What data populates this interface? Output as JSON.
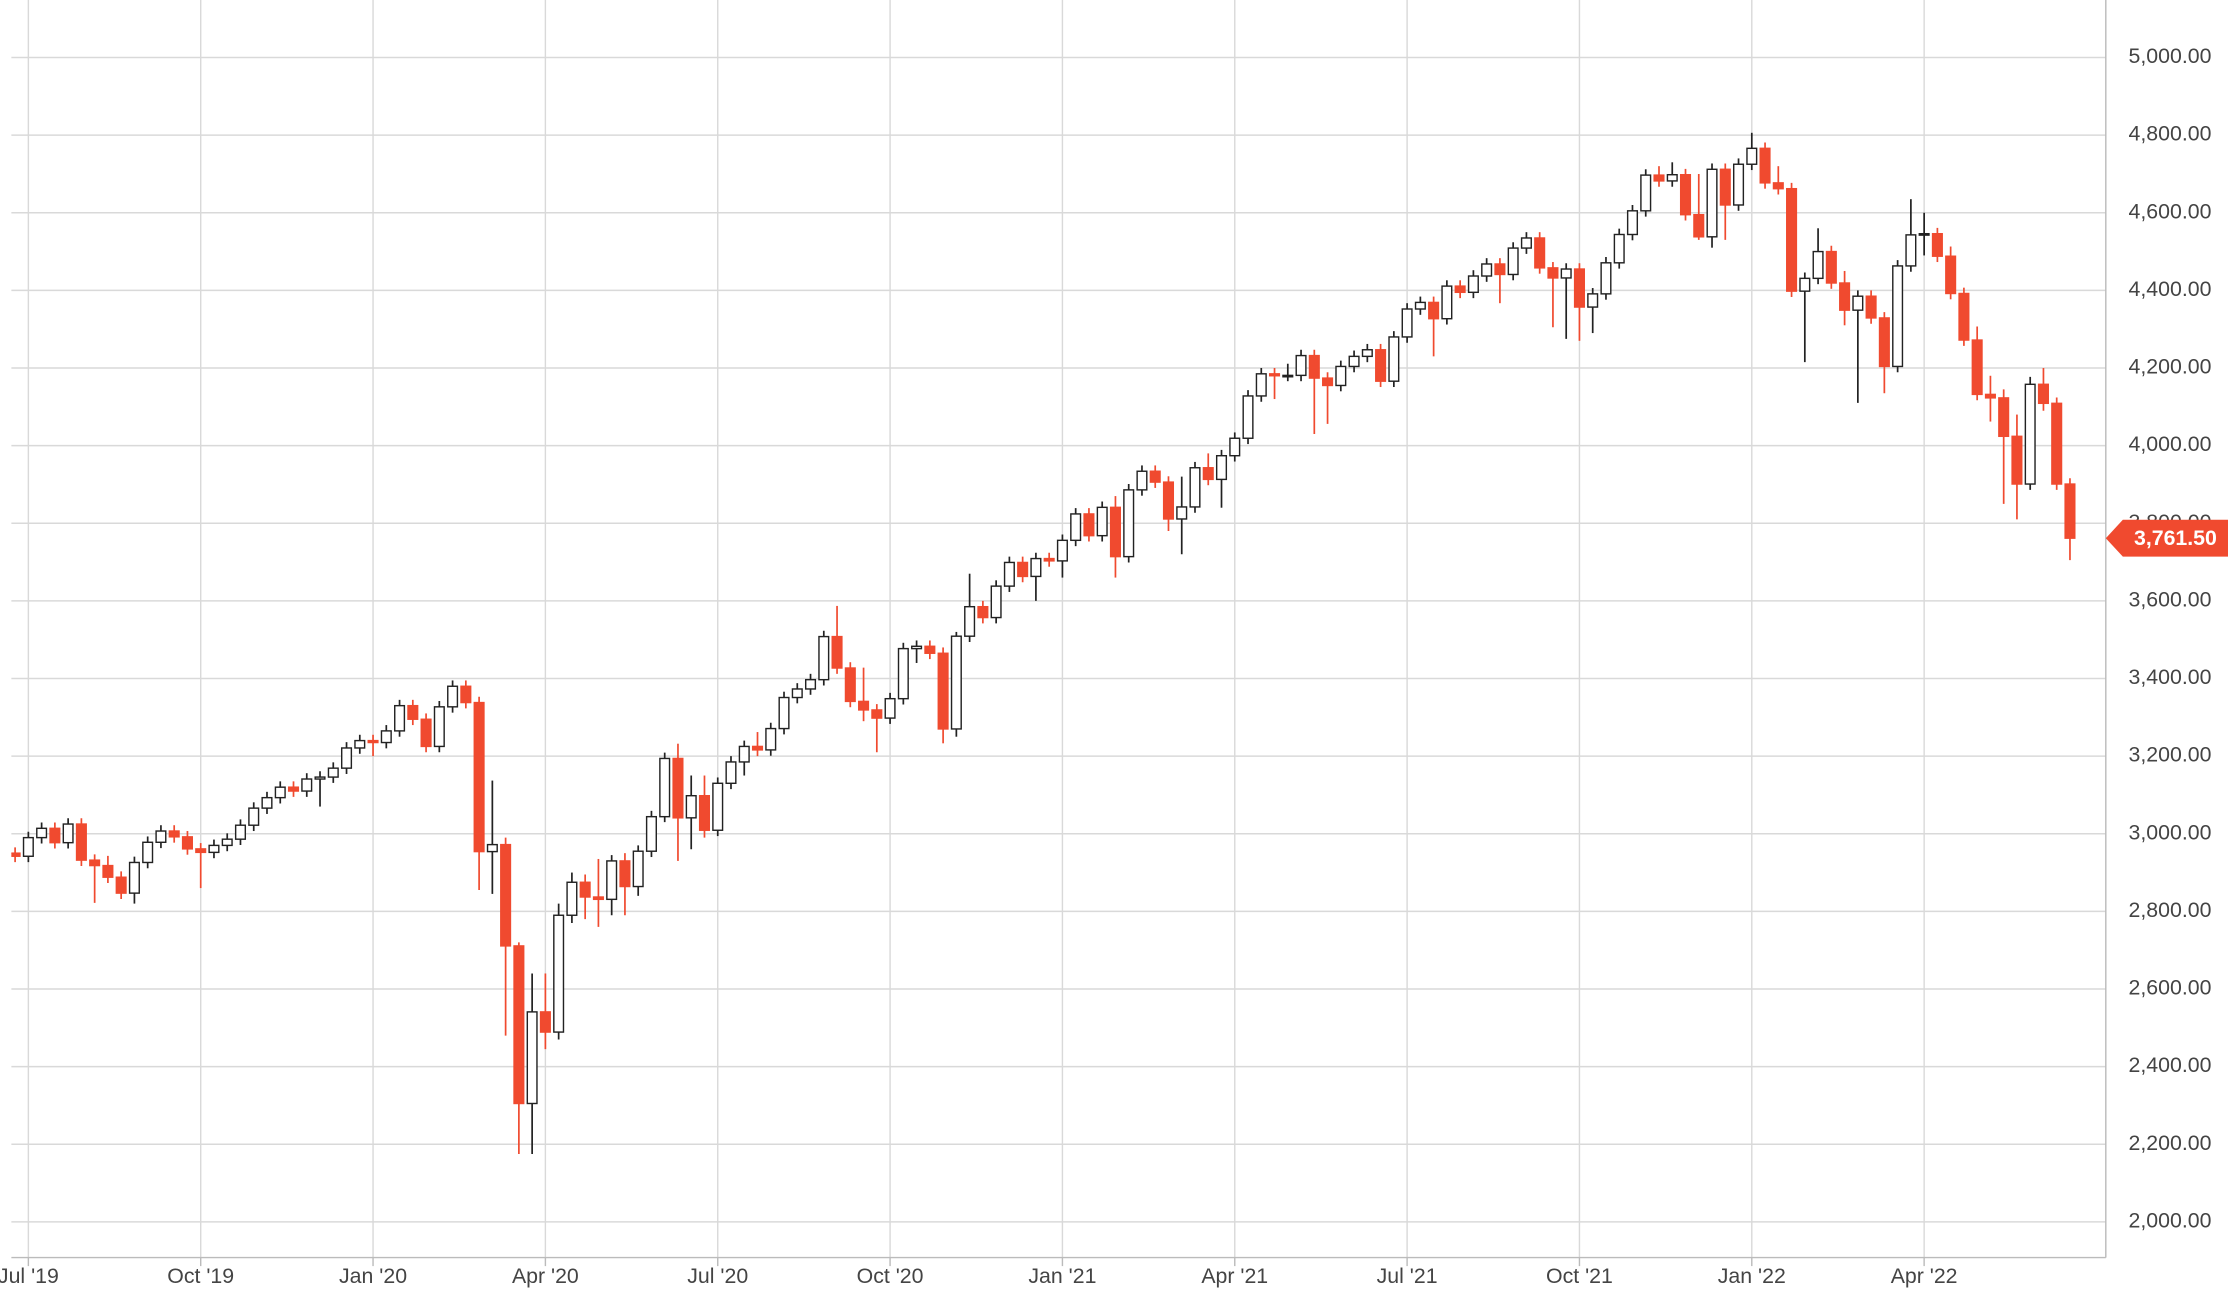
{
  "chart_data": {
    "type": "candlestick",
    "categories": [
      null,
      null,
      "Jul '19",
      null,
      null,
      null,
      null,
      null,
      null,
      null,
      null,
      null,
      null,
      null,
      null,
      "Oct '19",
      null,
      null,
      null,
      null,
      null,
      null,
      null,
      null,
      null,
      null,
      null,
      null,
      "Jan '20",
      null,
      null,
      null,
      null,
      null,
      null,
      null,
      null,
      null,
      null,
      null,
      null,
      "Apr '20",
      null,
      null,
      null,
      null,
      null,
      null,
      null,
      null,
      null,
      null,
      null,
      null,
      "Jul '20",
      null,
      null,
      null,
      null,
      null,
      null,
      null,
      null,
      null,
      null,
      null,
      null,
      "Oct '20",
      null,
      null,
      null,
      null,
      null,
      null,
      null,
      null,
      null,
      null,
      null,
      null,
      "Jan '21",
      null,
      null,
      null,
      null,
      null,
      null,
      null,
      null,
      null,
      null,
      null,
      null,
      "Apr '21",
      null,
      null,
      null,
      null,
      null,
      null,
      null,
      null,
      null,
      null,
      null,
      null,
      "Jul '21",
      null,
      null,
      null,
      null,
      null,
      null,
      null,
      null,
      null,
      null,
      null,
      null,
      "Oct '21",
      null,
      null,
      null,
      null,
      null,
      null,
      null,
      null,
      null,
      null,
      null,
      null,
      "Jan '22",
      null,
      null,
      null,
      null,
      null,
      null,
      null,
      null,
      null,
      null,
      null,
      null,
      "Apr '22",
      null,
      null,
      null,
      null,
      null,
      null,
      null,
      null,
      null,
      null,
      null
    ],
    "open": [
      2945,
      2950,
      2942,
      2990,
      3014,
      2977,
      3025,
      2932,
      2918,
      2888,
      2847,
      2926,
      2978,
      3007,
      2992,
      2961,
      2952,
      2970,
      2986,
      3022,
      3066,
      3093,
      3120,
      3110,
      3141,
      3146,
      3169,
      3221,
      3240,
      3235,
      3265,
      3330,
      3295,
      3225,
      3327,
      3380,
      3338,
      2954,
      2972,
      2711,
      2305,
      2541,
      2489,
      2790,
      2875,
      2837,
      2831,
      2930,
      2864,
      2955,
      3044,
      3194,
      3041,
      3098,
      3009,
      3130,
      3185,
      3225,
      3216,
      3271,
      3351,
      3373,
      3397,
      3508,
      3427,
      3341,
      3319,
      3298,
      3348,
      3477,
      3483,
      3465,
      3270,
      3509,
      3585,
      3557,
      3638,
      3699,
      3663,
      3709,
      3703,
      3756,
      3824,
      3768,
      3841,
      3714,
      3886,
      3934,
      3906,
      3811,
      3842,
      3943,
      3913,
      3974,
      4019,
      4128,
      4185,
      4180,
      4181,
      4232,
      4174,
      4155,
      4204,
      4230,
      4247,
      4166,
      4280,
      4352,
      4369,
      4327,
      4411,
      4395,
      4437,
      4468,
      4441,
      4509,
      4535,
      4458,
      4432,
      4455,
      4357,
      4391,
      4471,
      4544,
      4605,
      4697,
      4682,
      4698,
      4595,
      4538,
      4712,
      4620,
      4725,
      4766,
      4677,
      4662,
      4398,
      4431,
      4500,
      4419,
      4349,
      4385,
      4329,
      4204,
      4463,
      4543,
      4546,
      4488,
      4392,
      4272,
      4132,
      4123,
      4024,
      3901,
      4158,
      4109,
      3901
    ],
    "high": [
      2965,
      2965,
      3005,
      3029,
      3029,
      3040,
      3040,
      2947,
      2943,
      2903,
      2941,
      2993,
      3022,
      3022,
      3007,
      2976,
      2985,
      3001,
      3037,
      3081,
      3108,
      3135,
      3135,
      3156,
      3161,
      3184,
      3236,
      3255,
      3255,
      3280,
      3345,
      3345,
      3310,
      3342,
      3395,
      3395,
      3353,
      3137,
      2990,
      2720,
      2640,
      2640,
      2820,
      2900,
      2895,
      2935,
      2945,
      2950,
      2970,
      3059,
      3209,
      3232,
      3150,
      3150,
      3145,
      3200,
      3240,
      3262,
      3286,
      3366,
      3388,
      3412,
      3523,
      3587,
      3442,
      3428,
      3334,
      3363,
      3492,
      3498,
      3498,
      3480,
      3520,
      3670,
      3600,
      3653,
      3714,
      3714,
      3724,
      3724,
      3771,
      3839,
      3839,
      3856,
      3870,
      3901,
      3949,
      3949,
      3921,
      3920,
      3958,
      3980,
      3989,
      4034,
      4143,
      4200,
      4200,
      4211,
      4247,
      4247,
      4189,
      4219,
      4245,
      4262,
      4262,
      4295,
      4367,
      4384,
      4384,
      4426,
      4426,
      4452,
      4483,
      4483,
      4524,
      4550,
      4550,
      4473,
      4470,
      4470,
      4406,
      4486,
      4559,
      4620,
      4712,
      4720,
      4730,
      4713,
      4700,
      4727,
      4727,
      4740,
      4806,
      4781,
      4720,
      4677,
      4446,
      4560,
      4515,
      4450,
      4400,
      4400,
      4344,
      4478,
      4635,
      4600,
      4561,
      4513,
      4407,
      4307,
      4180,
      4145,
      4080,
      4177,
      4200,
      4124,
      3916
    ],
    "low": [
      2930,
      2927,
      2927,
      2975,
      2962,
      2962,
      2917,
      2822,
      2873,
      2832,
      2820,
      2911,
      2963,
      2977,
      2946,
      2860,
      2937,
      2955,
      2971,
      3007,
      3051,
      3078,
      3095,
      3095,
      3070,
      3131,
      3154,
      3206,
      3200,
      3220,
      3250,
      3280,
      3210,
      3210,
      3312,
      3323,
      2855,
      2845,
      2480,
      2175,
      2175,
      2445,
      2470,
      2770,
      2780,
      2760,
      2790,
      2790,
      2840,
      2940,
      3030,
      2930,
      2960,
      2990,
      2994,
      3115,
      3150,
      3200,
      3201,
      3256,
      3336,
      3358,
      3382,
      3412,
      3326,
      3290,
      3210,
      3283,
      3333,
      3440,
      3450,
      3233,
      3250,
      3494,
      3542,
      3542,
      3623,
      3648,
      3600,
      3688,
      3660,
      3741,
      3753,
      3753,
      3660,
      3699,
      3871,
      3891,
      3780,
      3720,
      3827,
      3898,
      3840,
      3959,
      4004,
      4113,
      4120,
      4166,
      4166,
      4030,
      4056,
      4140,
      4189,
      4215,
      4151,
      4151,
      4265,
      4337,
      4230,
      4312,
      4380,
      4380,
      4422,
      4367,
      4426,
      4494,
      4443,
      4305,
      4275,
      4270,
      4290,
      4376,
      4456,
      4529,
      4590,
      4667,
      4667,
      4580,
      4530,
      4510,
      4530,
      4605,
      4710,
      4662,
      4647,
      4383,
      4215,
      4416,
      4404,
      4310,
      4110,
      4314,
      4135,
      4189,
      4448,
      4490,
      4473,
      4377,
      4257,
      4117,
      4062,
      3850,
      3810,
      3886,
      4090,
      3886,
      3705
    ],
    "close": [
      2950,
      2942,
      2990,
      3014,
      2977,
      3025,
      2932,
      2918,
      2888,
      2847,
      2926,
      2978,
      3007,
      2992,
      2961,
      2952,
      2970,
      2986,
      3022,
      3066,
      3093,
      3120,
      3110,
      3141,
      3146,
      3169,
      3221,
      3240,
      3235,
      3265,
      3330,
      3295,
      3225,
      3327,
      3380,
      3338,
      2954,
      2972,
      2711,
      2305,
      2541,
      2489,
      2790,
      2875,
      2837,
      2831,
      2930,
      2864,
      2955,
      3044,
      3194,
      3041,
      3098,
      3009,
      3130,
      3185,
      3225,
      3216,
      3271,
      3351,
      3373,
      3397,
      3508,
      3427,
      3341,
      3319,
      3298,
      3348,
      3477,
      3483,
      3465,
      3270,
      3509,
      3585,
      3557,
      3638,
      3699,
      3663,
      3709,
      3703,
      3756,
      3824,
      3768,
      3841,
      3714,
      3886,
      3934,
      3906,
      3811,
      3842,
      3943,
      3913,
      3974,
      4019,
      4128,
      4185,
      4180,
      4181,
      4232,
      4174,
      4155,
      4204,
      4230,
      4247,
      4166,
      4280,
      4352,
      4369,
      4327,
      4411,
      4395,
      4437,
      4468,
      4441,
      4509,
      4535,
      4458,
      4432,
      4455,
      4357,
      4391,
      4471,
      4544,
      4605,
      4697,
      4682,
      4698,
      4595,
      4538,
      4712,
      4620,
      4725,
      4766,
      4677,
      4662,
      4398,
      4431,
      4500,
      4419,
      4349,
      4385,
      4329,
      4204,
      4463,
      4543,
      4546,
      4488,
      4392,
      4272,
      4132,
      4123,
      4024,
      3901,
      4158,
      4109,
      3901,
      3761.5
    ],
    "up_color": "#ffffff",
    "down_color": "#f04a2f",
    "outline_color": "#222222",
    "ylim": [
      1908,
      5148
    ],
    "yticks": [
      {
        "value": 2000,
        "label": "2,000.00"
      },
      {
        "value": 2200,
        "label": "2,200.00"
      },
      {
        "value": 2400,
        "label": "2,400.00"
      },
      {
        "value": 2600,
        "label": "2,600.00"
      },
      {
        "value": 2800,
        "label": "2,800.00"
      },
      {
        "value": 3000,
        "label": "3,000.00"
      },
      {
        "value": 3200,
        "label": "3,200.00"
      },
      {
        "value": 3400,
        "label": "3,400.00"
      },
      {
        "value": 3600,
        "label": "3,600.00"
      },
      {
        "value": 3800,
        "label": "3,800.00"
      },
      {
        "value": 4000,
        "label": "4,000.00"
      },
      {
        "value": 4200,
        "label": "4,200.00"
      },
      {
        "value": 4400,
        "label": "4,400.00"
      },
      {
        "value": 4600,
        "label": "4,600.00"
      },
      {
        "value": 4800,
        "label": "4,800.00"
      },
      {
        "value": 5000,
        "label": "5,000.00"
      }
    ],
    "last_price": {
      "value": 3761.5,
      "label": "3,761.50"
    },
    "grid": true
  }
}
